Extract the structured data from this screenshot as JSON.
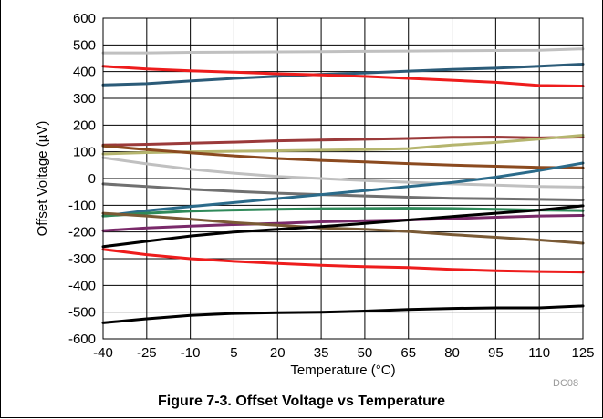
{
  "figure": {
    "caption": "Figure 7-3. Offset Voltage vs Temperature",
    "code": "DC08"
  },
  "chart_data": {
    "type": "line",
    "xlabel": "Temperature (°C)",
    "ylabel": "Offset Voltage (µV)",
    "xlim": [
      -40,
      125
    ],
    "ylim": [
      -600,
      600
    ],
    "xticks": [
      "-40",
      "-25",
      "-10",
      "5",
      "20",
      "35",
      "50",
      "65",
      "80",
      "95",
      "110",
      "125"
    ],
    "yticks": [
      "600",
      "500",
      "400",
      "300",
      "200",
      "100",
      "0",
      "-100",
      "-200",
      "-300",
      "-400",
      "-500",
      "-600"
    ],
    "grid": true,
    "x": [
      -40,
      -25,
      -10,
      5,
      20,
      35,
      50,
      65,
      80,
      95,
      110,
      125
    ],
    "series": [
      {
        "color": "#c0c0c0",
        "values": [
          470,
          470,
          472,
          473,
          474,
          475,
          476,
          477,
          478,
          479,
          480,
          485
        ]
      },
      {
        "color": "#2b5b78",
        "values": [
          350,
          355,
          365,
          375,
          383,
          390,
          395,
          402,
          408,
          413,
          420,
          428
        ]
      },
      {
        "color": "#ee1c1c",
        "values": [
          420,
          410,
          403,
          398,
          392,
          388,
          382,
          375,
          368,
          360,
          348,
          346
        ]
      },
      {
        "color": "#9b3a3a",
        "values": [
          125,
          128,
          132,
          136,
          141,
          144,
          147,
          150,
          154,
          155,
          152,
          155
        ]
      },
      {
        "color": "#b5b56e",
        "values": [
          92,
          97,
          100,
          102,
          104,
          106,
          108,
          112,
          125,
          135,
          148,
          162
        ]
      },
      {
        "color": "#8b4a1f",
        "values": [
          122,
          108,
          96,
          85,
          75,
          68,
          62,
          56,
          50,
          46,
          42,
          40
        ]
      },
      {
        "color": "#c0c0c0",
        "values": [
          78,
          55,
          35,
          20,
          8,
          0,
          -8,
          -14,
          -20,
          -25,
          -30,
          -32
        ]
      },
      {
        "color": "#707070",
        "values": [
          -20,
          -30,
          -40,
          -48,
          -55,
          -60,
          -65,
          -70,
          -74,
          -76,
          -78,
          -80
        ]
      },
      {
        "color": "#2b6b8a",
        "values": [
          -140,
          -120,
          -105,
          -90,
          -75,
          -60,
          -45,
          -30,
          -15,
          5,
          30,
          58
        ]
      },
      {
        "color": "#2f8a5a",
        "values": [
          -140,
          -130,
          -122,
          -118,
          -115,
          -113,
          -112,
          -111,
          -112,
          -115,
          -118,
          -120
        ]
      },
      {
        "color": "#7a2a6a",
        "values": [
          -195,
          -185,
          -178,
          -172,
          -168,
          -162,
          -158,
          -155,
          -150,
          -145,
          -140,
          -138
        ]
      },
      {
        "color": "#7a5a35",
        "values": [
          -130,
          -140,
          -152,
          -165,
          -175,
          -185,
          -190,
          -198,
          -210,
          -220,
          -230,
          -242
        ]
      },
      {
        "color": "#000000",
        "values": [
          -255,
          -235,
          -215,
          -200,
          -190,
          -180,
          -168,
          -155,
          -142,
          -130,
          -118,
          -102
        ]
      },
      {
        "color": "#ee1c1c",
        "values": [
          -265,
          -285,
          -300,
          -310,
          -318,
          -325,
          -330,
          -333,
          -340,
          -345,
          -348,
          -350
        ]
      },
      {
        "color": "#000000",
        "values": [
          -540,
          -525,
          -512,
          -505,
          -502,
          -500,
          -496,
          -490,
          -486,
          -484,
          -484,
          -477
        ]
      }
    ]
  }
}
